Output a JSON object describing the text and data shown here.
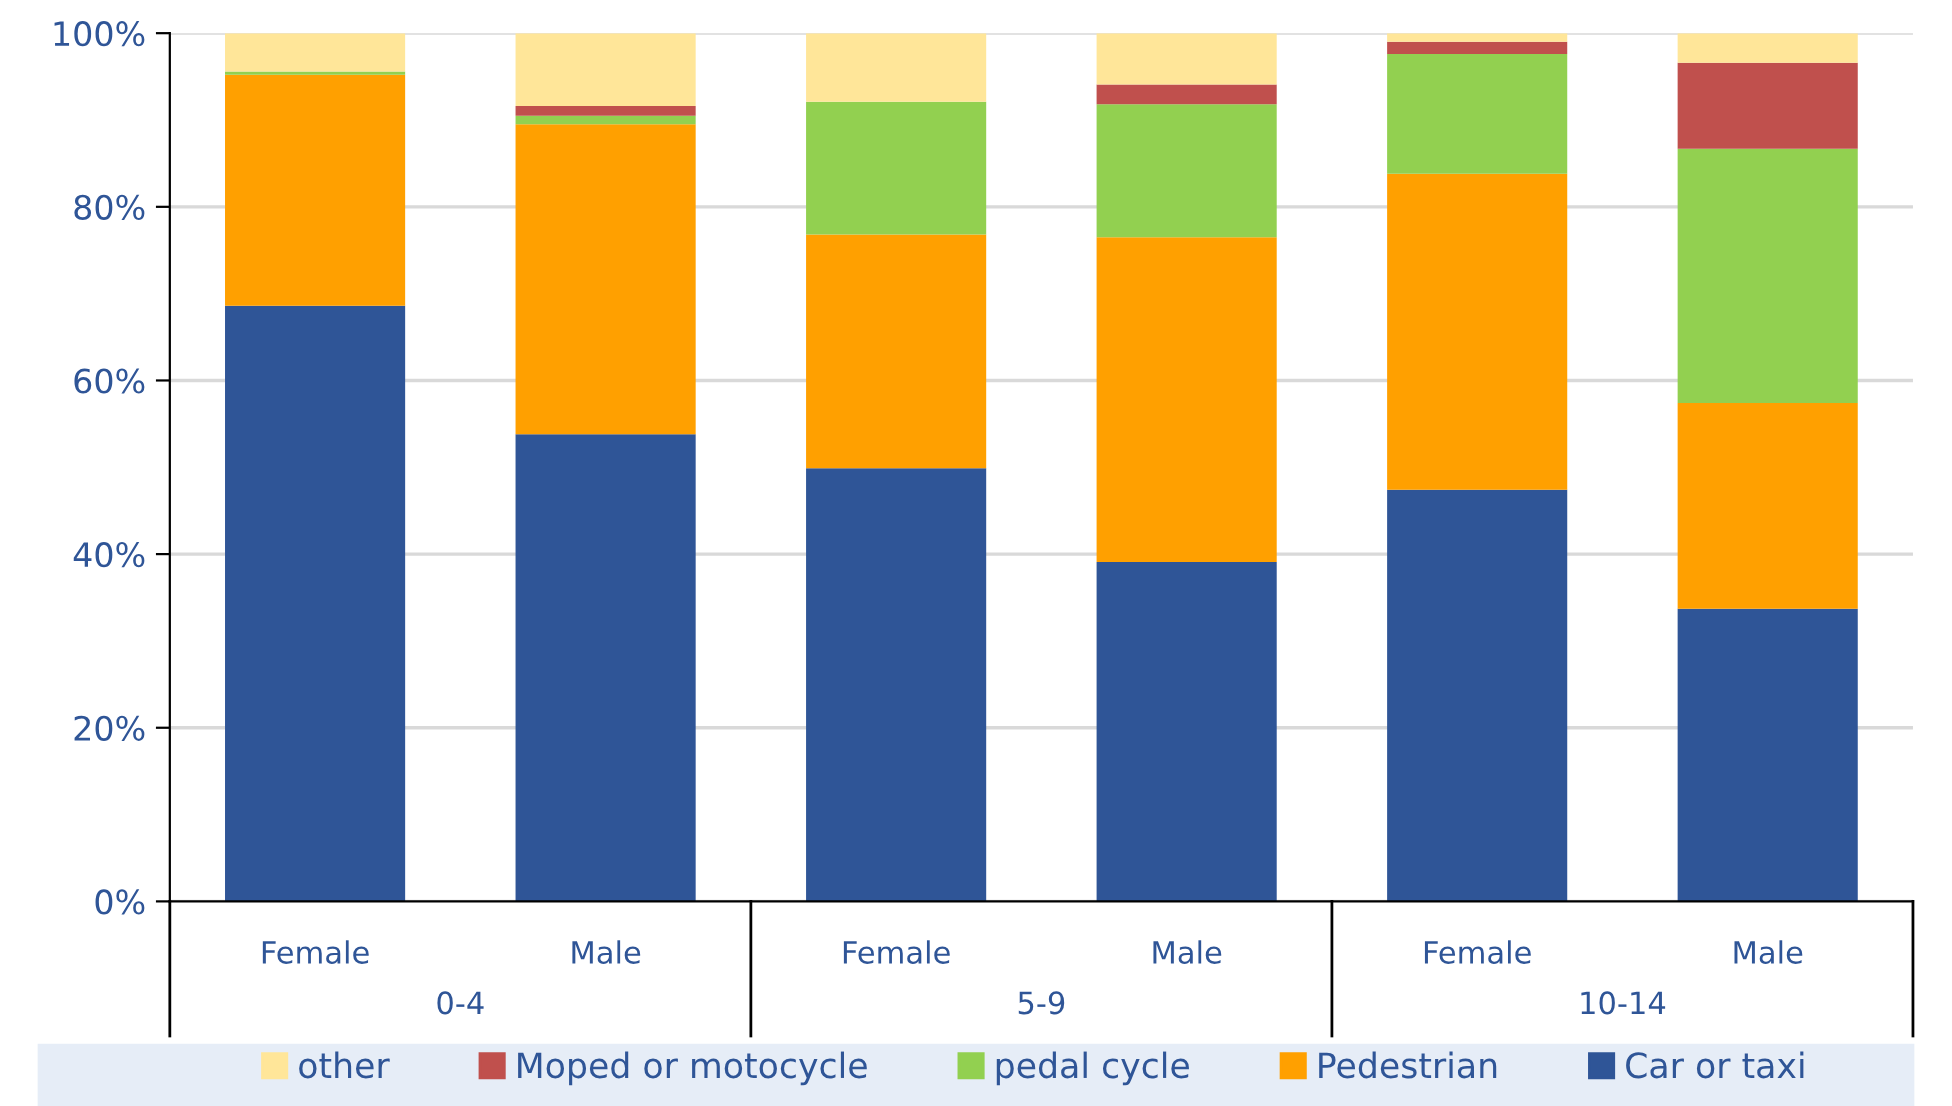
{
  "chart_data": {
    "type": "bar",
    "stacked": true,
    "categories": [
      "Female",
      "Male",
      "Female",
      "Male",
      "Female",
      "Male"
    ],
    "annotations": [
      "0-4",
      "5-9",
      "10-14"
    ],
    "series": [
      {
        "name": "Car or taxi",
        "color": "#2f5597",
        "values": [
          68.6,
          53.8,
          49.9,
          39.1,
          47.4,
          33.7
        ]
      },
      {
        "name": "Pedestrian",
        "color": "#ffa000",
        "values": [
          26.6,
          35.7,
          26.9,
          37.4,
          36.4,
          23.7
        ]
      },
      {
        "name": "pedal cycle",
        "color": "#92d050",
        "values": [
          0.4,
          1.0,
          15.3,
          15.3,
          13.8,
          29.3
        ]
      },
      {
        "name": "Moped or motocycle",
        "color": "#c0504d",
        "values": [
          0,
          1.1,
          0,
          2.3,
          1.4,
          9.9
        ]
      },
      {
        "name": "other",
        "color": "#ffe699",
        "values": [
          4.4,
          8.4,
          7.9,
          5.9,
          1.0,
          3.4
        ]
      }
    ],
    "ylim": [
      0,
      100
    ],
    "yticks": [
      {
        "value": 0,
        "label": "0%"
      },
      {
        "value": 20,
        "label": "20%"
      },
      {
        "value": 40,
        "label": "40%"
      },
      {
        "value": 60,
        "label": "60%"
      },
      {
        "value": 80,
        "label": "80%"
      },
      {
        "value": 100,
        "label": "100%"
      }
    ],
    "grid": "y",
    "legend": "bottom"
  }
}
